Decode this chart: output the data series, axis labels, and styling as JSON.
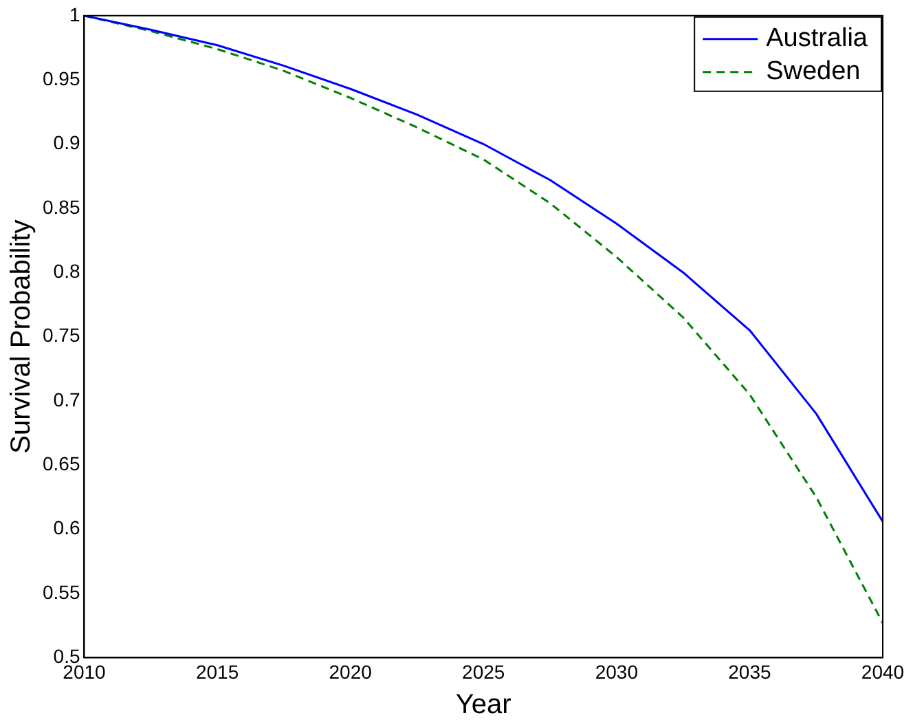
{
  "chart_data": {
    "type": "line",
    "xlabel": "Year",
    "ylabel": "Survival Probability",
    "x": [
      2010,
      2012.5,
      2015,
      2017.5,
      2020,
      2022.5,
      2025,
      2027.5,
      2030,
      2032.5,
      2035,
      2037.5,
      2040
    ],
    "series": [
      {
        "name": "Australia",
        "color": "#0000ff",
        "line_style": "solid",
        "values": [
          1,
          0.989,
          0.977,
          0.961,
          0.943,
          0.923,
          0.9,
          0.872,
          0.838,
          0.8,
          0.755,
          0.69,
          0.606
        ]
      },
      {
        "name": "Sweden",
        "color": "#008000",
        "line_style": "dashed",
        "values": [
          1,
          0.988,
          0.974,
          0.957,
          0.936,
          0.913,
          0.888,
          0.854,
          0.812,
          0.765,
          0.705,
          0.625,
          0.527
        ]
      }
    ],
    "xlim": [
      2010,
      2040
    ],
    "xticks": [
      2010,
      2015,
      2020,
      2025,
      2030,
      2035,
      2040
    ],
    "ylim": [
      0.5,
      1
    ],
    "yticks": [
      0.5,
      0.55,
      0.6,
      0.65,
      0.7,
      0.75,
      0.8,
      0.85,
      0.9,
      0.95,
      1
    ],
    "grid": false,
    "legend": "top right",
    "marker": "none"
  }
}
